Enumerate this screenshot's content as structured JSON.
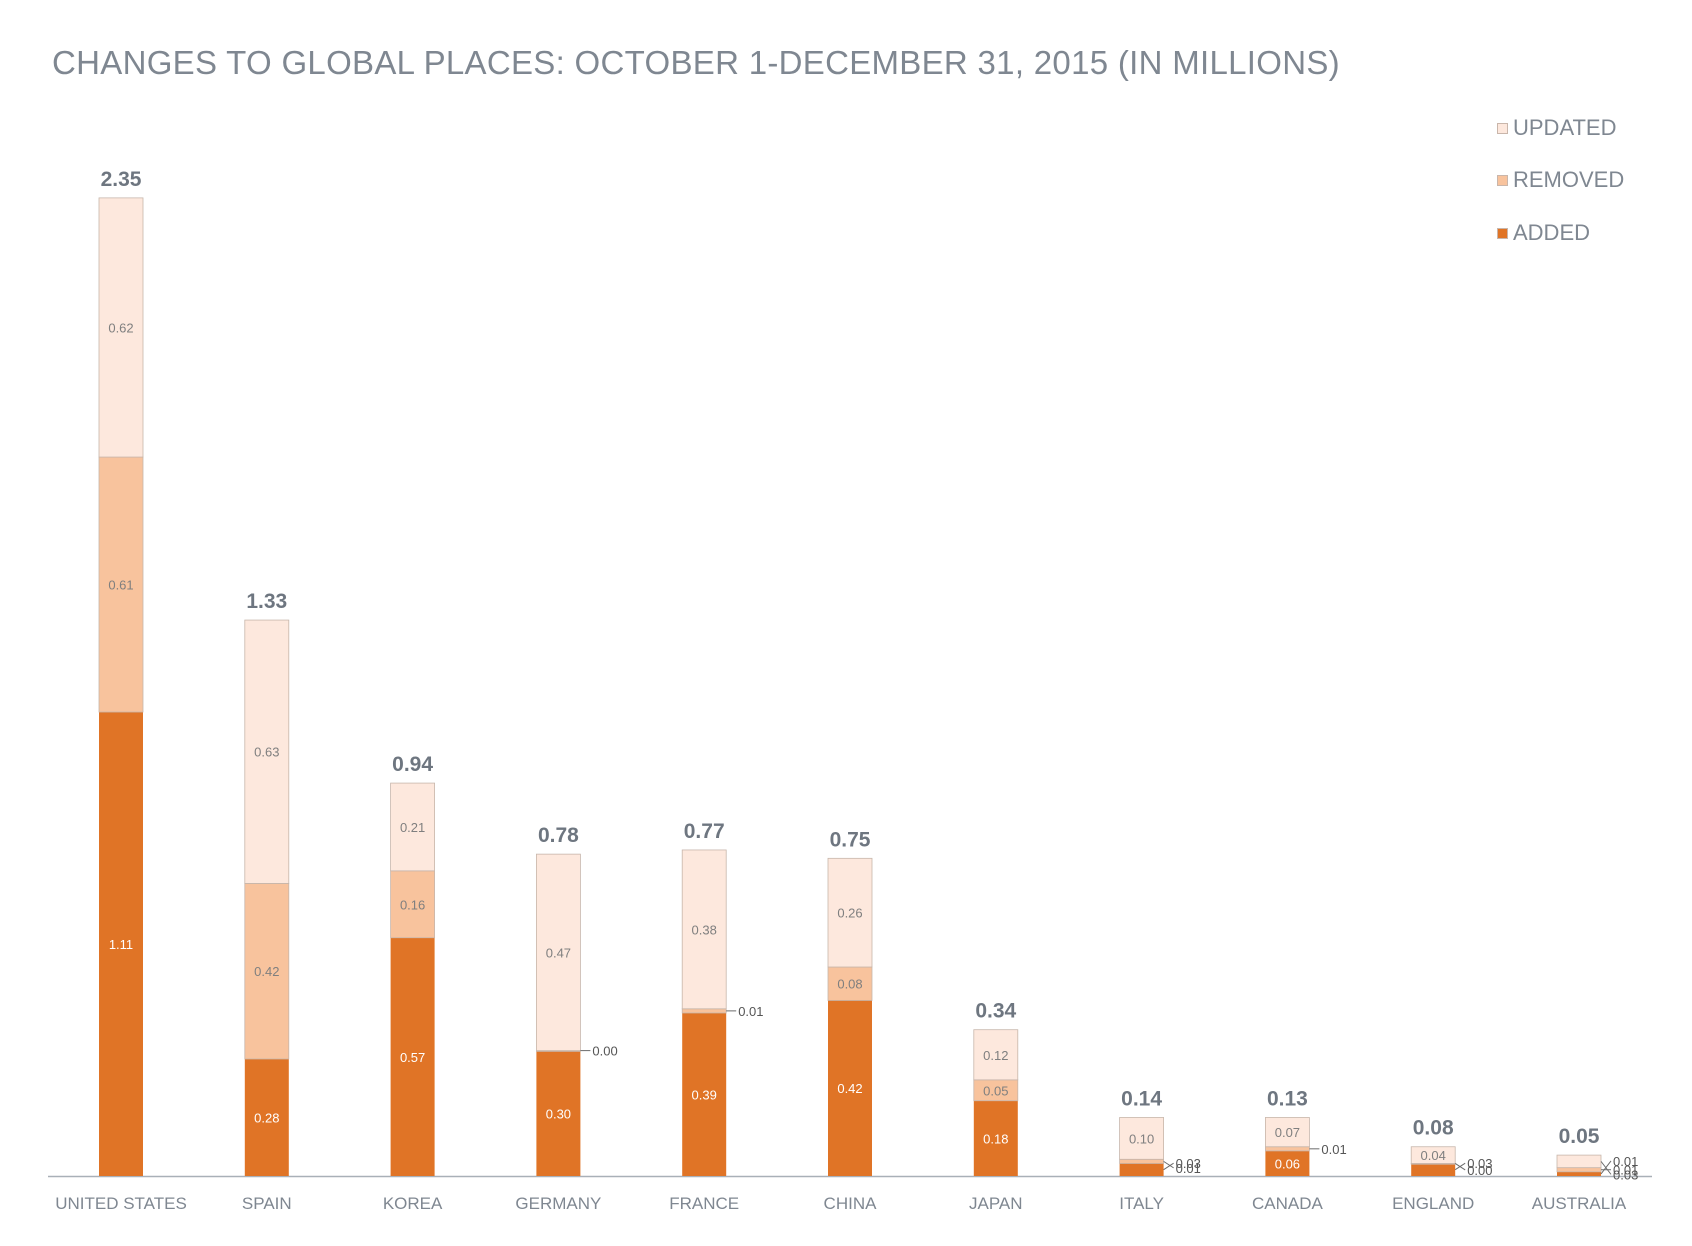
{
  "chart_data": {
    "type": "bar",
    "stacked": true,
    "title": "CHANGES TO GLOBAL PLACES: OCTOBER 1-DECEMBER 31, 2015 (IN MILLIONS)",
    "xlabel": "",
    "ylabel": "",
    "grid": false,
    "legend_position": "top-right",
    "categories": [
      "UNITED STATES",
      "SPAIN",
      "KOREA",
      "GERMANY",
      "FRANCE",
      "CHINA",
      "JAPAN",
      "ITALY",
      "CANADA",
      "ENGLAND",
      "AUSTRALIA"
    ],
    "series": [
      {
        "name": "ADDED",
        "color": "#e07426",
        "values": [
          1.11,
          0.28,
          0.57,
          0.3,
          0.39,
          0.42,
          0.18,
          0.03,
          0.06,
          0.03,
          0.01
        ],
        "labels": [
          "1.11",
          "0.28",
          "0.57",
          "0.30",
          "0.39",
          "0.42",
          "0.18",
          "0.03",
          "0.06",
          "0.03",
          "0.01"
        ]
      },
      {
        "name": "REMOVED",
        "color": "#f8c39d",
        "values": [
          0.61,
          0.42,
          0.16,
          0.0,
          0.01,
          0.08,
          0.05,
          0.01,
          0.01,
          0.0,
          0.01
        ],
        "labels": [
          "0.61",
          "0.42",
          "0.16",
          "0.00",
          "0.01",
          "0.08",
          "0.05",
          "0.01",
          "0.01",
          "0.00",
          "0.01"
        ]
      },
      {
        "name": "UPDATED",
        "color": "#fde8dd",
        "values": [
          0.62,
          0.63,
          0.21,
          0.47,
          0.38,
          0.26,
          0.12,
          0.1,
          0.07,
          0.04,
          0.03
        ],
        "labels": [
          "0.62",
          "0.63",
          "0.21",
          "0.47",
          "0.38",
          "0.26",
          "0.12",
          "0.10",
          "0.07",
          "0.04",
          "0.03"
        ]
      }
    ],
    "totals": [
      2.35,
      1.33,
      0.94,
      0.78,
      0.77,
      0.75,
      0.34,
      0.14,
      0.13,
      0.08,
      0.05
    ],
    "total_labels": [
      "2.35",
      "1.33",
      "0.94",
      "0.78",
      "0.77",
      "0.75",
      "0.34",
      "0.14",
      "0.13",
      "0.08",
      "0.05"
    ],
    "legend": [
      "UPDATED",
      "REMOVED",
      "ADDED"
    ]
  }
}
